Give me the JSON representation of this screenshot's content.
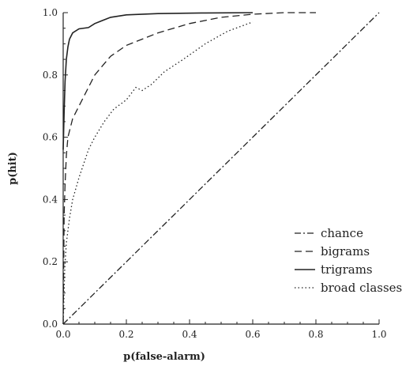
{
  "chart_data": {
    "type": "line",
    "title": "",
    "xlabel": "p(false-alarm)",
    "ylabel": "p(hit)",
    "xlim": [
      0,
      1
    ],
    "ylim": [
      0,
      1
    ],
    "xticks": [
      "0.0",
      "0.2",
      "0.4",
      "0.6",
      "0.8",
      "1.0"
    ],
    "yticks": [
      "0.0",
      "0.2",
      "0.4",
      "0.6",
      "0.8",
      "1.0"
    ],
    "grid": false,
    "legend_position": "bottom-right",
    "series": [
      {
        "name": "chance",
        "style": "dashdot",
        "points": [
          [
            0,
            0
          ],
          [
            1,
            1
          ]
        ]
      },
      {
        "name": "bigrams",
        "style": "dashed",
        "points": [
          [
            0,
            0
          ],
          [
            0.003,
            0.35
          ],
          [
            0.006,
            0.45
          ],
          [
            0.01,
            0.54
          ],
          [
            0.015,
            0.6
          ],
          [
            0.03,
            0.66
          ],
          [
            0.05,
            0.7
          ],
          [
            0.08,
            0.76
          ],
          [
            0.1,
            0.8
          ],
          [
            0.15,
            0.86
          ],
          [
            0.2,
            0.895
          ],
          [
            0.3,
            0.935
          ],
          [
            0.4,
            0.965
          ],
          [
            0.5,
            0.985
          ],
          [
            0.6,
            0.995
          ],
          [
            0.7,
            1.0
          ],
          [
            0.8,
            1.0
          ]
        ]
      },
      {
        "name": "trigrams",
        "style": "solid",
        "points": [
          [
            0,
            0.56
          ],
          [
            0.003,
            0.68
          ],
          [
            0.006,
            0.78
          ],
          [
            0.01,
            0.85
          ],
          [
            0.015,
            0.89
          ],
          [
            0.02,
            0.915
          ],
          [
            0.03,
            0.935
          ],
          [
            0.05,
            0.948
          ],
          [
            0.08,
            0.952
          ],
          [
            0.1,
            0.965
          ],
          [
            0.15,
            0.985
          ],
          [
            0.2,
            0.993
          ],
          [
            0.3,
            0.997
          ],
          [
            0.45,
            0.999
          ],
          [
            0.6,
            1.0
          ]
        ]
      },
      {
        "name": "broad classes",
        "style": "dotted",
        "points": [
          [
            0,
            0
          ],
          [
            0.005,
            0.18
          ],
          [
            0.01,
            0.26
          ],
          [
            0.02,
            0.34
          ],
          [
            0.03,
            0.4
          ],
          [
            0.05,
            0.47
          ],
          [
            0.08,
            0.56
          ],
          [
            0.1,
            0.6
          ],
          [
            0.13,
            0.65
          ],
          [
            0.16,
            0.69
          ],
          [
            0.2,
            0.72
          ],
          [
            0.23,
            0.76
          ],
          [
            0.25,
            0.75
          ],
          [
            0.28,
            0.77
          ],
          [
            0.32,
            0.81
          ],
          [
            0.38,
            0.85
          ],
          [
            0.45,
            0.9
          ],
          [
            0.52,
            0.94
          ],
          [
            0.6,
            0.97
          ]
        ]
      }
    ]
  }
}
